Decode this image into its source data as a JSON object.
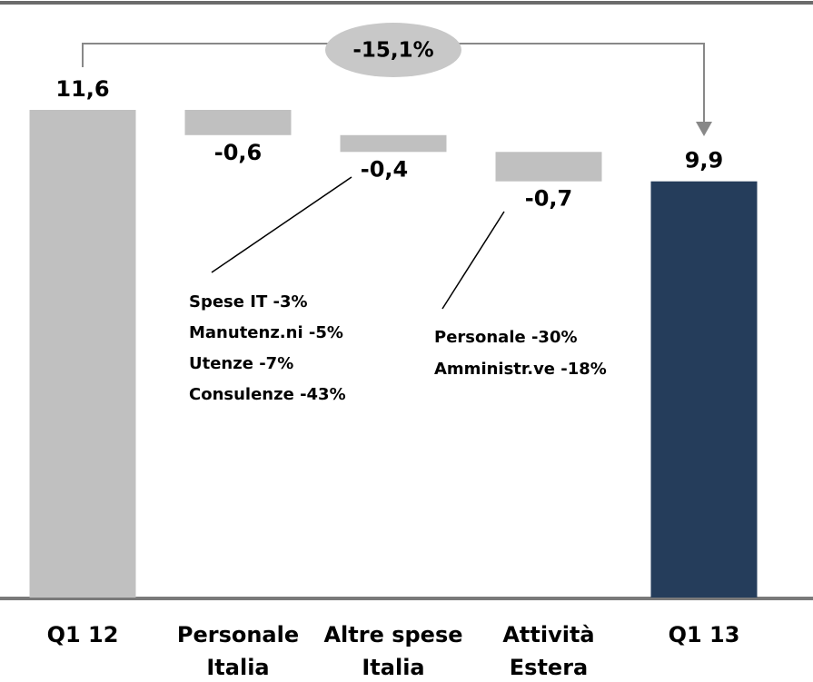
{
  "chart_data": {
    "type": "waterfall",
    "categories": [
      [
        "Q1 12"
      ],
      [
        "Personale",
        "Italia"
      ],
      [
        "Altre spese",
        "Italia"
      ],
      [
        "Attività",
        "Estera"
      ],
      [
        "Q1 13"
      ]
    ],
    "values": [
      11.6,
      -0.6,
      -0.4,
      -0.7,
      9.9
    ],
    "value_labels": [
      "11,6",
      "-0,6",
      "-0,4",
      "-0,7",
      "9,9"
    ],
    "colors": [
      "#c0c0c0",
      "#c0c0c0",
      "#c0c0c0",
      "#c0c0c0",
      "#253d5b"
    ],
    "change_label": "-15,1%",
    "notes": [
      {
        "category": 2,
        "lines": [
          "Spese IT -3%",
          "Manutenz.ni -5%",
          "Utenze -7%",
          "Consulenze -43%"
        ]
      },
      {
        "category": 3,
        "lines": [
          "Personale -30%",
          "Amministr.ve -18%"
        ]
      }
    ]
  }
}
